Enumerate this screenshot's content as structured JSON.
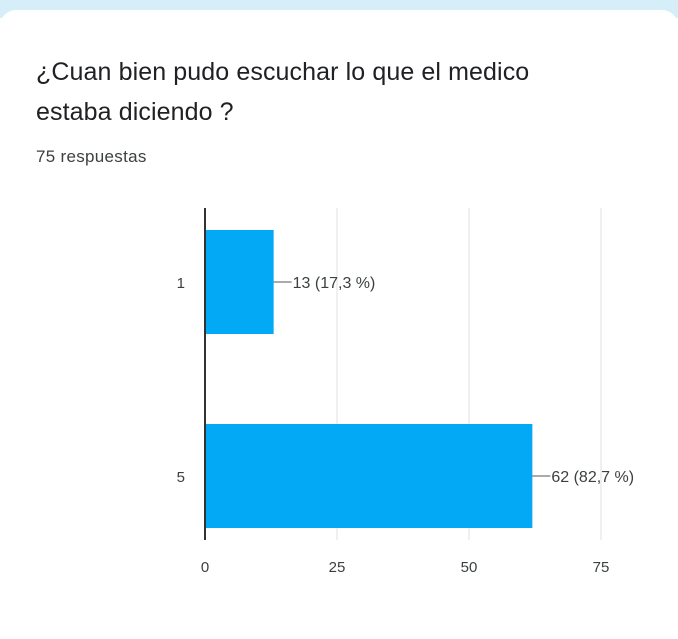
{
  "question": {
    "line1": "¿Cuan bien pudo escuchar lo que el medico",
    "line2": "estaba diciendo ?"
  },
  "response_count": "75 respuestas",
  "colors": {
    "bar": "#03a9f4",
    "grid": "#e0e0e0",
    "axis": "#333333",
    "text": "#3c4043",
    "top_strip": "#d6eef8"
  },
  "chart_data": {
    "type": "bar",
    "orientation": "horizontal",
    "categories": [
      "1",
      "5"
    ],
    "values": [
      13,
      62
    ],
    "value_labels": [
      "13 (17,3 %)",
      "62 (82,7 %)"
    ],
    "xlim": [
      0,
      75
    ],
    "xticks": [
      0,
      25,
      50,
      75
    ],
    "grid": true
  }
}
